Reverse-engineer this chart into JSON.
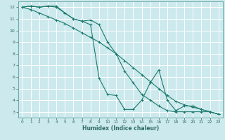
{
  "xlabel": "Humidex (Indice chaleur)",
  "bg_color": "#cce9ed",
  "grid_color": "#ffffff",
  "line_color": "#1a7a6e",
  "xlim": [
    -0.5,
    23.5
  ],
  "ylim": [
    2.5,
    12.5
  ],
  "yticks": [
    3,
    4,
    5,
    6,
    7,
    8,
    9,
    10,
    11,
    12
  ],
  "xticks": [
    0,
    1,
    2,
    3,
    4,
    5,
    6,
    7,
    8,
    9,
    10,
    11,
    12,
    13,
    14,
    15,
    16,
    17,
    18,
    19,
    20,
    21,
    22,
    23
  ],
  "series": [
    {
      "x": [
        0,
        1,
        2,
        3,
        4,
        5,
        6,
        7,
        8,
        9,
        10,
        11,
        12,
        13,
        14,
        15,
        16,
        17,
        18,
        19,
        20,
        21,
        22,
        23
      ],
      "y": [
        12,
        12.1,
        12,
        12.1,
        12.1,
        11.5,
        11.0,
        10.8,
        10.5,
        5.9,
        4.5,
        4.4,
        3.2,
        3.2,
        4.0,
        5.5,
        6.6,
        4.0,
        3.1,
        3.5,
        3.5,
        3.2,
        3.0,
        2.8
      ]
    },
    {
      "x": [
        0,
        1,
        2,
        3,
        4,
        5,
        6,
        7,
        8,
        9,
        10,
        11,
        12,
        13,
        14,
        15,
        16,
        17,
        18,
        19,
        20,
        21,
        22,
        23
      ],
      "y": [
        12,
        11.8,
        11.5,
        11.2,
        10.9,
        10.6,
        10.2,
        9.8,
        9.4,
        9.0,
        8.5,
        8.0,
        7.4,
        6.8,
        6.2,
        5.6,
        5.0,
        4.4,
        3.9,
        3.6,
        3.4,
        3.2,
        3.0,
        2.8
      ]
    },
    {
      "x": [
        0,
        1,
        2,
        3,
        4,
        5,
        6,
        7,
        8,
        9,
        10,
        11,
        12,
        13,
        14,
        15,
        16,
        17,
        18,
        19,
        20,
        21,
        22,
        23
      ],
      "y": [
        12,
        12.1,
        12,
        12.1,
        12.0,
        11.5,
        11.0,
        10.8,
        10.9,
        10.5,
        9.0,
        8.0,
        6.5,
        5.5,
        4.5,
        4.0,
        3.5,
        3.1,
        3.0,
        3.0,
        3.0,
        3.0,
        3.0,
        2.8
      ]
    }
  ]
}
